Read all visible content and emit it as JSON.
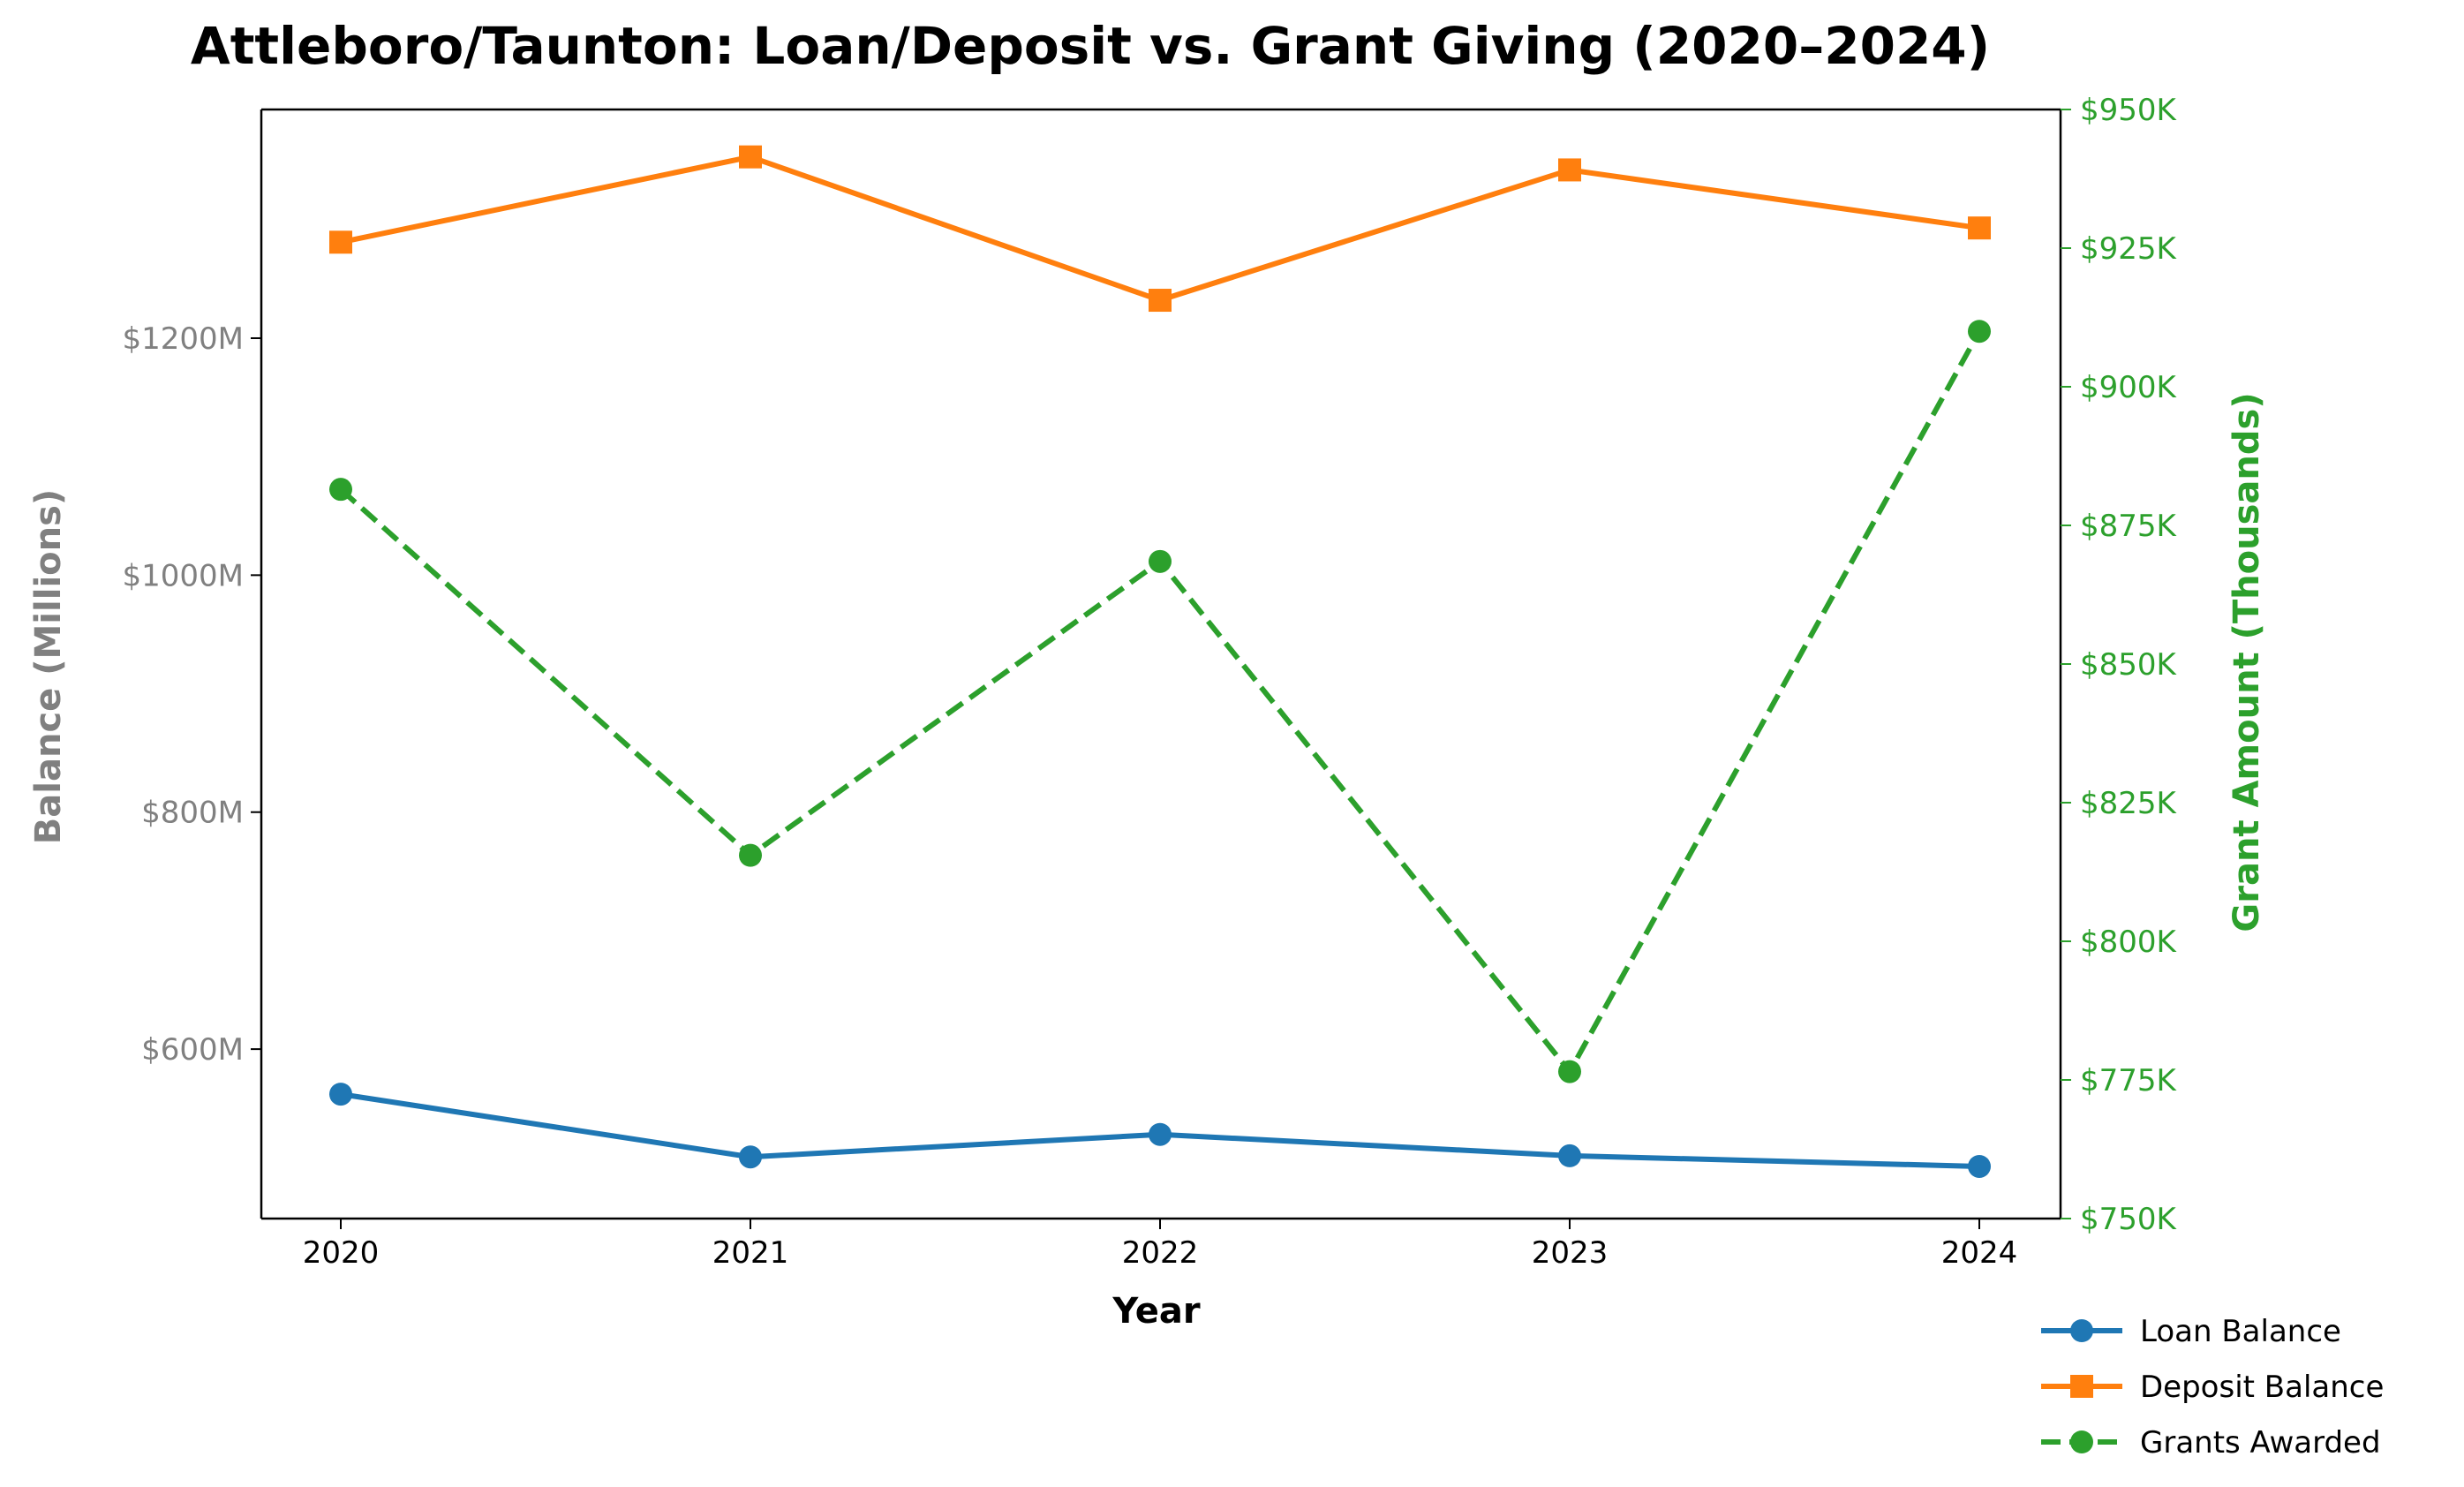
{
  "chart_data": {
    "type": "line",
    "title": "Attleboro/Taunton: Loan/Deposit vs. Grant Giving (2020–2024)",
    "xlabel": "Year",
    "ylabel_left": "Balance (Millions)",
    "ylabel_right": "Grant Amount (Thousands)",
    "x": [
      2020,
      2021,
      2022,
      2023,
      2024
    ],
    "x_tick_labels": [
      "2020",
      "2021",
      "2022",
      "2023",
      "2024"
    ],
    "ylim_left": [
      457,
      1393
    ],
    "ylim_right": [
      750,
      950
    ],
    "left_ticks": [
      600,
      800,
      1000,
      1200
    ],
    "left_tick_labels": [
      "$600M",
      "$800M",
      "$1000M",
      "$1200M"
    ],
    "right_ticks": [
      750,
      775,
      800,
      825,
      850,
      875,
      900,
      925,
      950
    ],
    "right_tick_labels": [
      "$750K",
      "$775K",
      "$800K",
      "$825K",
      "$850K",
      "$875K",
      "$900K",
      "$925K",
      "$950K"
    ],
    "grid": false,
    "legend_position": "bottom-right outside",
    "series": [
      {
        "name": "Loan Balance",
        "axis": "left",
        "values": [
          562,
          509,
          528,
          510,
          501
        ],
        "color": "#1f77b4",
        "marker": "circle",
        "linestyle": "solid"
      },
      {
        "name": "Deposit Balance",
        "axis": "left",
        "values": [
          1281,
          1353,
          1232,
          1342,
          1293
        ],
        "color": "#ff7f0e",
        "marker": "square",
        "linestyle": "solid"
      },
      {
        "name": "Grants Awarded",
        "axis": "right",
        "values": [
          881.5,
          815.5,
          868.5,
          776.5,
          910
        ],
        "color": "#2ca02c",
        "marker": "circle",
        "linestyle": "dashed"
      }
    ]
  }
}
